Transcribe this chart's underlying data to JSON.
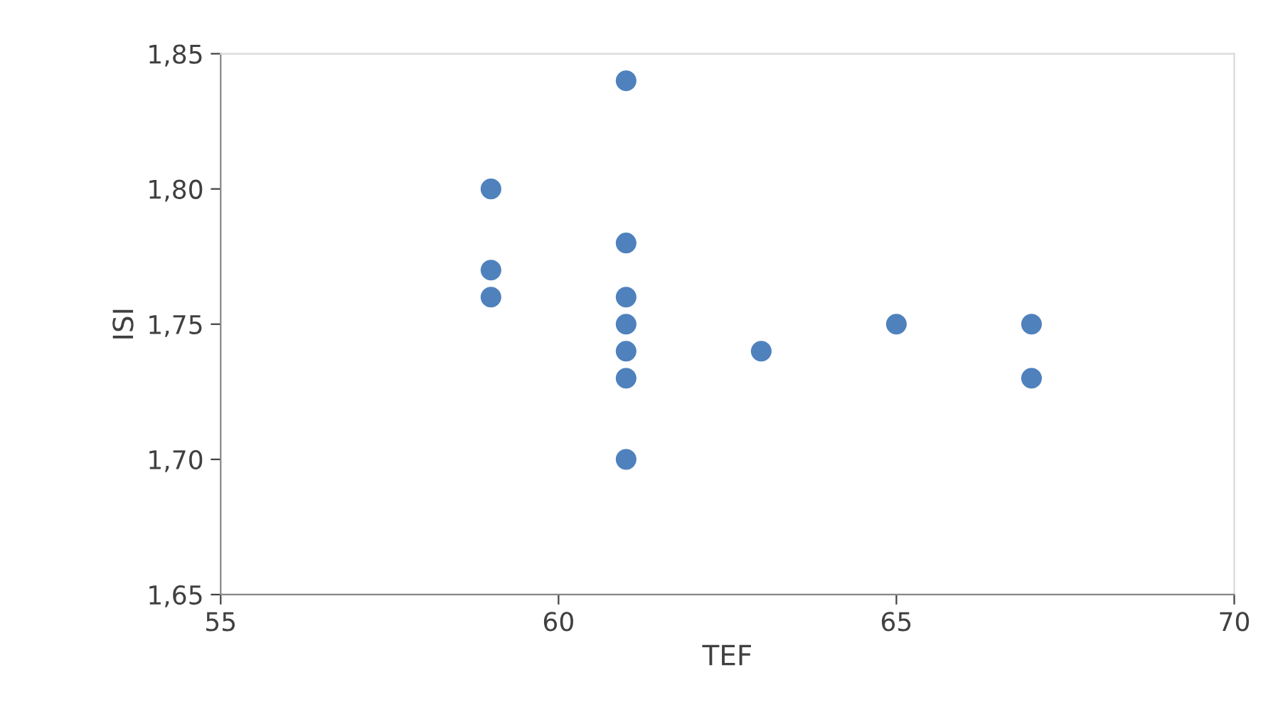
{
  "chart_data": {
    "type": "scatter",
    "xlabel": "TEF",
    "ylabel": "ISI",
    "x": [
      59,
      59,
      59,
      61,
      61,
      61,
      61,
      61,
      61,
      61,
      63,
      65,
      67,
      67
    ],
    "series": [
      {
        "color": "#4f81bd",
        "values": [
          1.8,
          1.77,
          1.76,
          1.84,
          1.78,
          1.76,
          1.75,
          1.74,
          1.73,
          1.7,
          1.74,
          1.75,
          1.75,
          1.73
        ]
      }
    ],
    "xlim": [
      55,
      70
    ],
    "xticks": [
      55,
      60,
      65,
      70
    ],
    "ylim": [
      1.65,
      1.85
    ],
    "yticks": [
      {
        "value": 1.65,
        "label": "1,65"
      },
      {
        "value": 1.7,
        "label": "1,70"
      },
      {
        "value": 1.75,
        "label": "1,75"
      },
      {
        "value": 1.8,
        "label": "1,80"
      },
      {
        "value": 1.85,
        "label": "1,85"
      }
    ],
    "grid": false,
    "marker": "circle"
  }
}
